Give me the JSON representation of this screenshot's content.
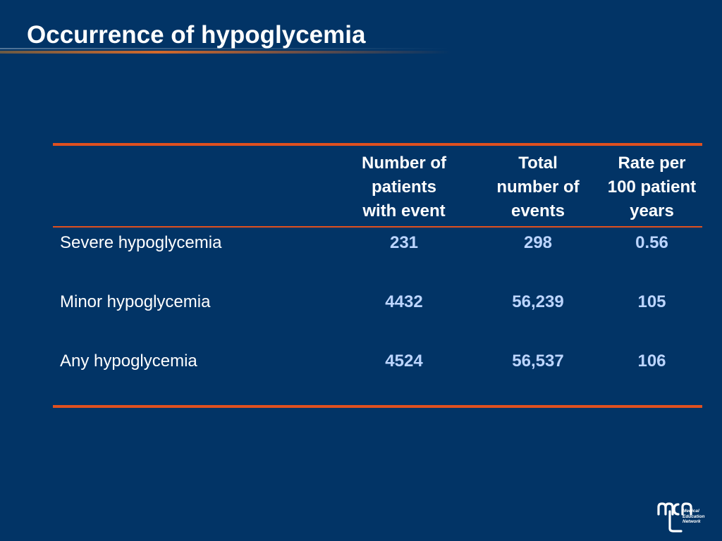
{
  "slide": {
    "title": "Occurrence of hypoglycemia"
  },
  "table": {
    "headers": [
      [
        ""
      ],
      [
        "Number of",
        "patients",
        "with event"
      ],
      [
        "Total",
        "number of",
        "events"
      ],
      [
        "Rate per",
        "100 patient",
        "years"
      ]
    ],
    "rows": [
      {
        "label": "Severe hypoglycemia",
        "patients": "231",
        "events": "298",
        "rate": "0.56"
      },
      {
        "label": "Minor hypoglycemia",
        "patients": "4432",
        "events": "56,239",
        "rate": "105"
      },
      {
        "label": "Any hypoglycemia",
        "patients": "4524",
        "events": "56,537",
        "rate": "106"
      }
    ]
  },
  "logo": {
    "icon": "mcn-logo-icon",
    "lines": [
      "Medical",
      "Education",
      "Network"
    ]
  },
  "colors": {
    "background": "#023466",
    "accent_rule": "#e0501f",
    "value_text": "#bcd5ff",
    "text": "#ffffff"
  }
}
